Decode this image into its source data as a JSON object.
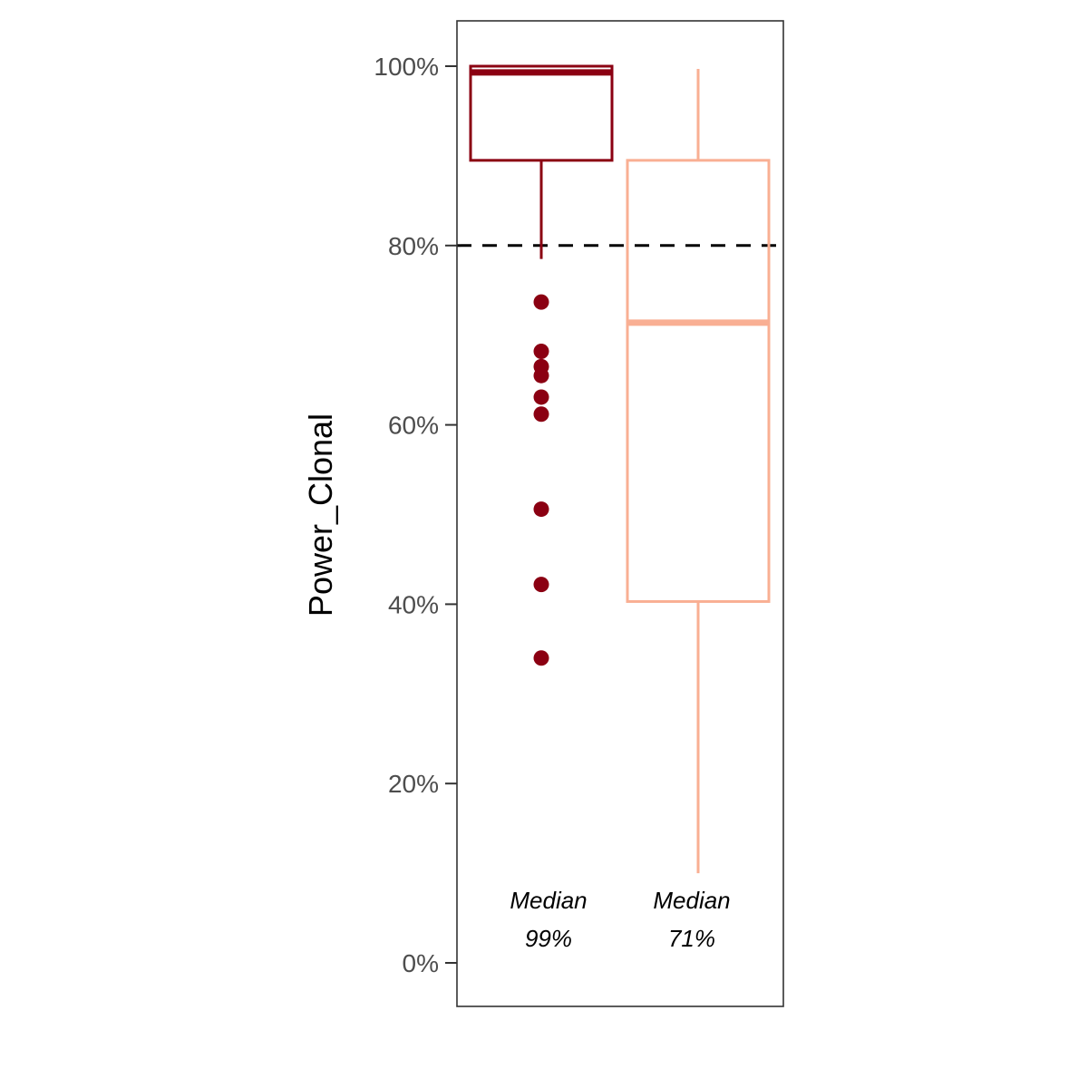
{
  "chart_data": {
    "type": "box",
    "title": "",
    "xlabel": "",
    "ylabel": "Power_Clonal",
    "ylim": [
      -0.048,
      1.05
    ],
    "y_ticks": [
      {
        "value": 0.0,
        "label": "0%"
      },
      {
        "value": 0.2,
        "label": "20%"
      },
      {
        "value": 0.4,
        "label": "40%"
      },
      {
        "value": 0.6,
        "label": "60%"
      },
      {
        "value": 0.8,
        "label": "80%"
      },
      {
        "value": 1.0,
        "label": "100%"
      }
    ],
    "reference_line": {
      "value": 0.8,
      "style": "dashed",
      "color": "#000000"
    },
    "grid": false,
    "legend": "none",
    "boxes": [
      {
        "color": "#8b0012",
        "whisker_low": 0.785,
        "q1": 0.895,
        "median": 0.993,
        "q3": 1.0,
        "whisker_high": 1.0,
        "outliers": [
          0.737,
          0.682,
          0.665,
          0.655,
          0.631,
          0.612,
          0.506,
          0.422,
          0.34
        ],
        "annotation": {
          "line1": "Median",
          "line2": "99%"
        }
      },
      {
        "color": "#f9af93",
        "whisker_low": 0.1,
        "q1": 0.403,
        "median": 0.714,
        "q3": 0.895,
        "whisker_high": 0.997,
        "outliers": [],
        "annotation": {
          "line1": "Median",
          "line2": "71%"
        }
      }
    ]
  }
}
